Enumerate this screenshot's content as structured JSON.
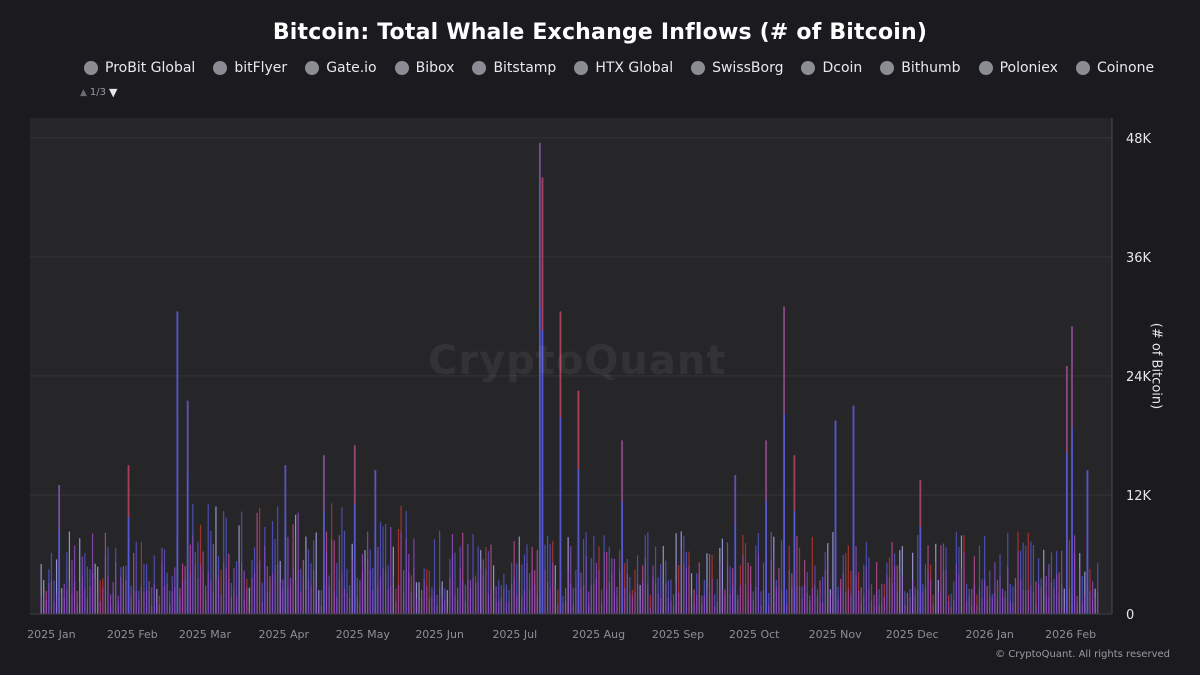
{
  "chart_data": {
    "type": "bar",
    "title": "Bitcoin: Total Whale Exchange Inflows (# of Bitcoin)",
    "ylabel": "(# of Bitcoin)",
    "xlabel": "",
    "ylim": [
      0,
      50000
    ],
    "y_ticks": [
      {
        "value": 0,
        "label": "0"
      },
      {
        "value": 12000,
        "label": "12K"
      },
      {
        "value": 24000,
        "label": "24K"
      },
      {
        "value": 36000,
        "label": "36K"
      },
      {
        "value": 48000,
        "label": "48K"
      }
    ],
    "x_ticks": [
      {
        "date": "2025-01-01",
        "label": "2025 Jan"
      },
      {
        "date": "2025-02-01",
        "label": "2025 Feb"
      },
      {
        "date": "2025-03-01",
        "label": "2025 Mar"
      },
      {
        "date": "2025-04-01",
        "label": "2025 Apr"
      },
      {
        "date": "2025-05-01",
        "label": "2025 May"
      },
      {
        "date": "2025-06-01",
        "label": "2025 Jun"
      },
      {
        "date": "2025-07-01",
        "label": "2025 Jul"
      },
      {
        "date": "2025-08-01",
        "label": "2025 Aug"
      },
      {
        "date": "2025-09-01",
        "label": "2025 Sep"
      },
      {
        "date": "2025-10-01",
        "label": "2025 Oct"
      },
      {
        "date": "2025-11-01",
        "label": "2025 Nov"
      },
      {
        "date": "2025-12-01",
        "label": "2025 Dec"
      },
      {
        "date": "2026-01-01",
        "label": "2026 Jan"
      },
      {
        "date": "2026-02-01",
        "label": "2026 Feb"
      }
    ],
    "x_range": [
      "2024-12-30",
      "2026-02-20"
    ],
    "legend_position": "top",
    "grid": true,
    "series": [
      {
        "name": "ProBit Global",
        "color": "#8c8c94"
      },
      {
        "name": "bitFlyer",
        "color": "#8c8c94"
      },
      {
        "name": "Gate.io",
        "color": "#8c8c94"
      },
      {
        "name": "Bibox",
        "color": "#8c8c94"
      },
      {
        "name": "Bitstamp",
        "color": "#8c8c94"
      },
      {
        "name": "HTX Global",
        "color": "#8c8c94"
      },
      {
        "name": "SwissBorg",
        "color": "#8c8c94"
      },
      {
        "name": "Dcoin",
        "color": "#8c8c94"
      },
      {
        "name": "Bithumb",
        "color": "#8c8c94"
      },
      {
        "name": "Poloniex",
        "color": "#8c8c94"
      },
      {
        "name": "Coinone",
        "color": "#8c8c94"
      }
    ],
    "highlights": [
      {
        "date": "2025-01-08",
        "value": 13000
      },
      {
        "date": "2025-02-04",
        "value": 15000
      },
      {
        "date": "2025-02-23",
        "value": 30500
      },
      {
        "date": "2025-02-27",
        "value": 21500
      },
      {
        "date": "2025-04-06",
        "value": 15000
      },
      {
        "date": "2025-04-21",
        "value": 16000
      },
      {
        "date": "2025-05-03",
        "value": 17000
      },
      {
        "date": "2025-05-11",
        "value": 14500
      },
      {
        "date": "2025-07-14",
        "value": 47500
      },
      {
        "date": "2025-07-15",
        "value": 44000
      },
      {
        "date": "2025-07-22",
        "value": 30500
      },
      {
        "date": "2025-07-29",
        "value": 22500
      },
      {
        "date": "2025-08-15",
        "value": 17500
      },
      {
        "date": "2025-09-28",
        "value": 14000
      },
      {
        "date": "2025-10-10",
        "value": 17500
      },
      {
        "date": "2025-10-17",
        "value": 31000
      },
      {
        "date": "2025-10-21",
        "value": 16000
      },
      {
        "date": "2025-11-06",
        "value": 19500
      },
      {
        "date": "2025-11-13",
        "value": 21000
      },
      {
        "date": "2025-12-09",
        "value": 13500
      },
      {
        "date": "2026-02-04",
        "value": 25000
      },
      {
        "date": "2026-02-06",
        "value": 29000
      },
      {
        "date": "2026-02-12",
        "value": 14500
      }
    ],
    "palette": {
      "blue": "#5a5ad8",
      "purple": "#9b4fd0",
      "red": "#c8372d",
      "pink": "#d04fa0",
      "light": "#b8b8ff"
    }
  },
  "watermark": "CryptoQuant",
  "legend_pager": {
    "page": "1/3"
  },
  "copyright": "© CryptoQuant. All rights reserved"
}
